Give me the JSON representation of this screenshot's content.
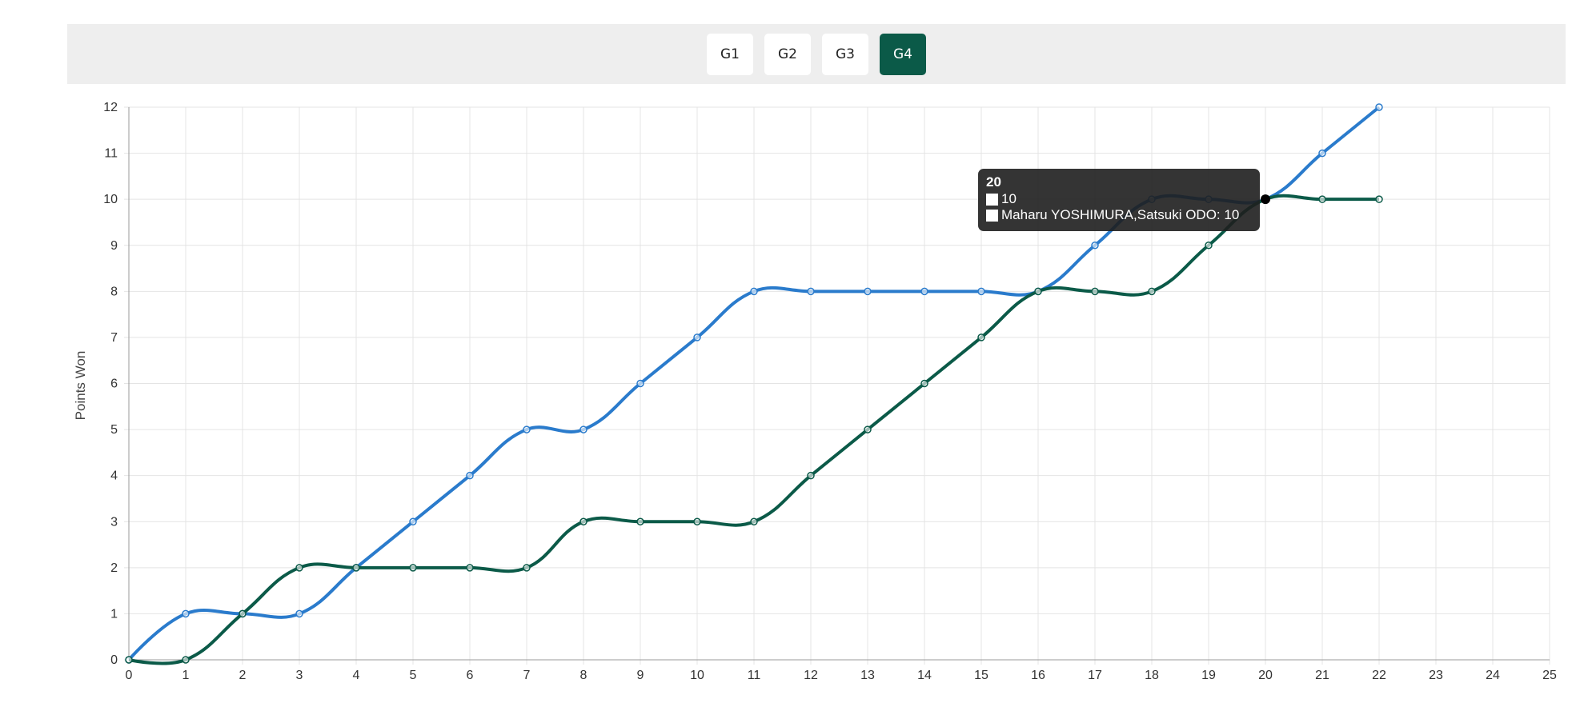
{
  "toolbar": {
    "buttons": [
      "G1",
      "G2",
      "G3",
      "G4"
    ],
    "active_index": 3
  },
  "tooltip": {
    "title": "20",
    "rows": [
      "10",
      "Maharu YOSHIMURA,Satsuki ODO: 10"
    ]
  },
  "colors": {
    "series_blue": "#2a7bcc",
    "series_green": "#0b5a48",
    "active_button": "#0b5a48",
    "grid": "#e2e2e2"
  },
  "chart_data": {
    "type": "line",
    "ylabel": "Points Won",
    "xlabel": "",
    "xlim": [
      0,
      25
    ],
    "ylim": [
      0,
      12
    ],
    "x_ticks": [
      0,
      1,
      2,
      3,
      4,
      5,
      6,
      7,
      8,
      9,
      10,
      11,
      12,
      13,
      14,
      15,
      16,
      17,
      18,
      19,
      20,
      21,
      22,
      23,
      24,
      25
    ],
    "y_ticks": [
      0,
      1,
      2,
      3,
      4,
      5,
      6,
      7,
      8,
      9,
      10,
      11,
      12
    ],
    "grid": true,
    "legend": "none",
    "x": [
      0,
      1,
      2,
      3,
      4,
      5,
      6,
      7,
      8,
      9,
      10,
      11,
      12,
      13,
      14,
      15,
      16,
      17,
      18,
      19,
      20,
      21,
      22
    ],
    "series": [
      {
        "color": "#2a7bcc",
        "values": [
          0,
          1,
          1,
          1,
          2,
          3,
          4,
          5,
          5,
          6,
          7,
          8,
          8,
          8,
          8,
          8,
          8,
          9,
          10,
          10,
          10,
          11,
          12
        ]
      },
      {
        "name": "Maharu YOSHIMURA,Satsuki ODO",
        "color": "#0b5a48",
        "values": [
          0,
          0,
          1,
          2,
          2,
          2,
          2,
          2,
          3,
          3,
          3,
          3,
          4,
          5,
          6,
          7,
          8,
          8,
          8,
          9,
          10,
          10,
          10
        ]
      }
    ],
    "highlight_x": 20
  }
}
